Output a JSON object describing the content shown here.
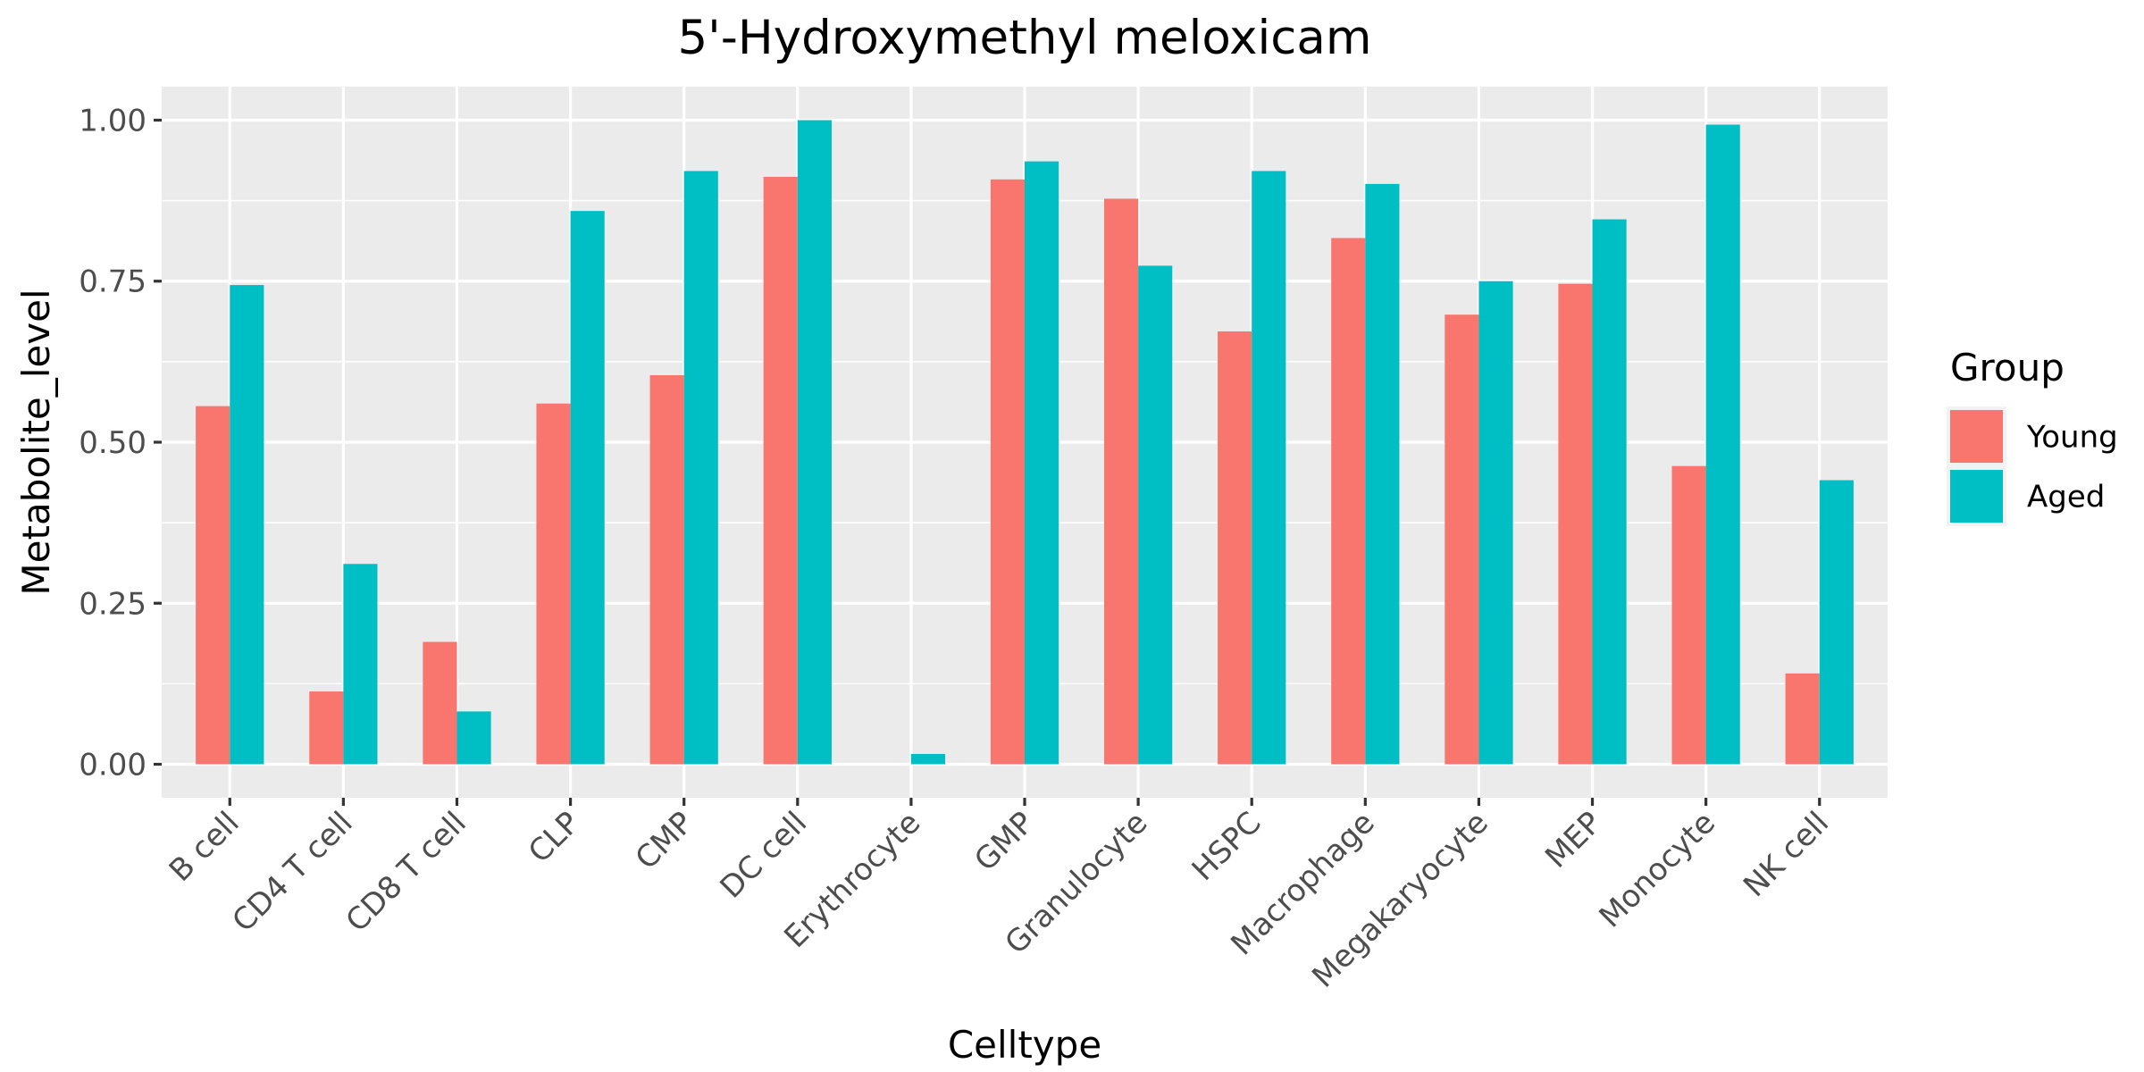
{
  "chart_data": {
    "type": "bar",
    "title": "5'-Hydroxymethyl meloxicam",
    "xlabel": "Celltype",
    "ylabel": "Metabolite_level",
    "categories": [
      "B cell",
      "CD4 T cell",
      "CD8 T cell",
      "CLP",
      "CMP",
      "DC cell",
      "Erythrocyte",
      "GMP",
      "Granulocyte",
      "HSPC",
      "Macrophage",
      "Megakaryocyte",
      "MEP",
      "Monocyte",
      "NK cell"
    ],
    "series": [
      {
        "name": "Young",
        "color": "#F8766D",
        "values": [
          0.556,
          0.113,
          0.19,
          0.56,
          0.604,
          0.912,
          0.0,
          0.908,
          0.878,
          0.672,
          0.817,
          0.698,
          0.746,
          0.463,
          0.141
        ]
      },
      {
        "name": "Aged",
        "color": "#00BFC4",
        "values": [
          0.744,
          0.311,
          0.082,
          0.859,
          0.921,
          1.0,
          0.016,
          0.936,
          0.774,
          0.921,
          0.901,
          0.75,
          0.846,
          0.993,
          0.441
        ]
      }
    ],
    "ylim": [
      -0.052,
      1.052
    ],
    "yticks": [
      0,
      0.25,
      0.5,
      0.75,
      1.0
    ],
    "ytick_labels": [
      "0.00",
      "0.25",
      "0.50",
      "0.75",
      "1.00"
    ],
    "grid": true,
    "legend": {
      "title": "Group",
      "position": "right"
    },
    "panel_color": "#EBEBEB"
  }
}
